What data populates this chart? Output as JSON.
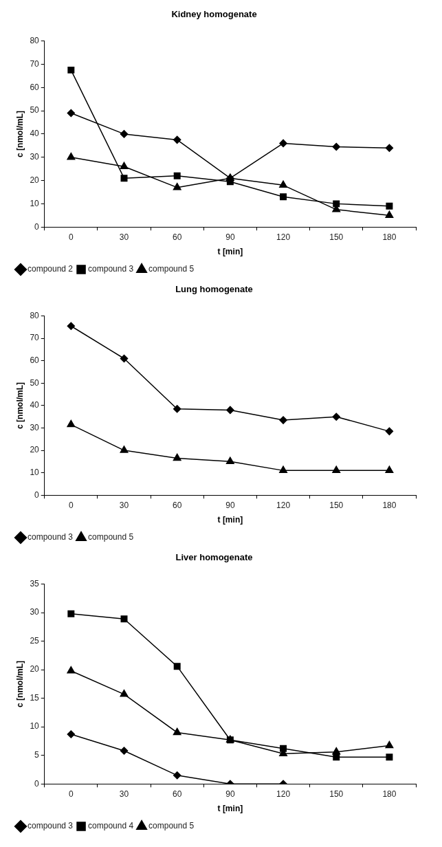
{
  "chart_data": [
    {
      "type": "line",
      "title": "Kidney homogenate",
      "xlabel": "t [min]",
      "ylabel": "c [nmol/mL]",
      "categories": [
        "0",
        "30",
        "60",
        "90",
        "120",
        "150",
        "180"
      ],
      "ylim": [
        0,
        80
      ],
      "yticks": [
        0,
        10,
        20,
        30,
        40,
        50,
        60,
        70,
        80
      ],
      "grid": false,
      "legend": "bottom left",
      "line_style": "solid",
      "series": [
        {
          "name": "compound 2",
          "color": "#000000",
          "marker": "diamond",
          "values": [
            49,
            40,
            37.5,
            21,
            36,
            34.5,
            34
          ]
        },
        {
          "name": "compound 3",
          "color": "#000000",
          "marker": "square",
          "values": [
            67.5,
            21,
            22,
            19.5,
            13,
            10,
            9
          ]
        },
        {
          "name": "compound 5",
          "color": "#000000",
          "marker": "triangle",
          "values": [
            30,
            26,
            17,
            21,
            18,
            7.5,
            5
          ]
        }
      ]
    },
    {
      "type": "line",
      "title": "Lung homogenate",
      "xlabel": "t [min]",
      "ylabel": "c [nmol/mL]",
      "categories": [
        "0",
        "30",
        "60",
        "90",
        "120",
        "150",
        "180"
      ],
      "ylim": [
        0,
        80
      ],
      "yticks": [
        0,
        10,
        20,
        30,
        40,
        50,
        60,
        70,
        80
      ],
      "grid": false,
      "legend": "bottom left",
      "line_style": "solid",
      "series": [
        {
          "name": "compound 3",
          "color": "#000000",
          "marker": "diamond",
          "values": [
            75.5,
            61,
            38.5,
            38,
            33.5,
            35,
            28.5
          ]
        },
        {
          "name": "compound 5",
          "color": "#000000",
          "marker": "triangle",
          "values": [
            31.5,
            20,
            16.5,
            15,
            11,
            11,
            11
          ]
        }
      ]
    },
    {
      "type": "line",
      "title": "Liver homogenate",
      "xlabel": "t [min]",
      "ylabel": "c [nmol/mL]",
      "categories": [
        "0",
        "30",
        "60",
        "90",
        "120",
        "150",
        "180"
      ],
      "ylim": [
        0,
        35
      ],
      "yticks": [
        0,
        5,
        10,
        15,
        20,
        25,
        30,
        35
      ],
      "grid": false,
      "legend": "bottom left",
      "line_style": "solid",
      "series": [
        {
          "name": "compound 3",
          "color": "#000000",
          "marker": "diamond",
          "values": [
            8.7,
            5.8,
            1.5,
            0,
            0,
            null,
            null
          ]
        },
        {
          "name": "compound 4",
          "color": "#000000",
          "marker": "square",
          "values": [
            29.8,
            28.9,
            20.6,
            7.7,
            6.2,
            4.7,
            4.7
          ]
        },
        {
          "name": "compound 5",
          "color": "#000000",
          "marker": "triangle",
          "values": [
            19.8,
            15.7,
            9,
            7.7,
            5.3,
            5.6,
            6.7
          ]
        }
      ]
    }
  ]
}
